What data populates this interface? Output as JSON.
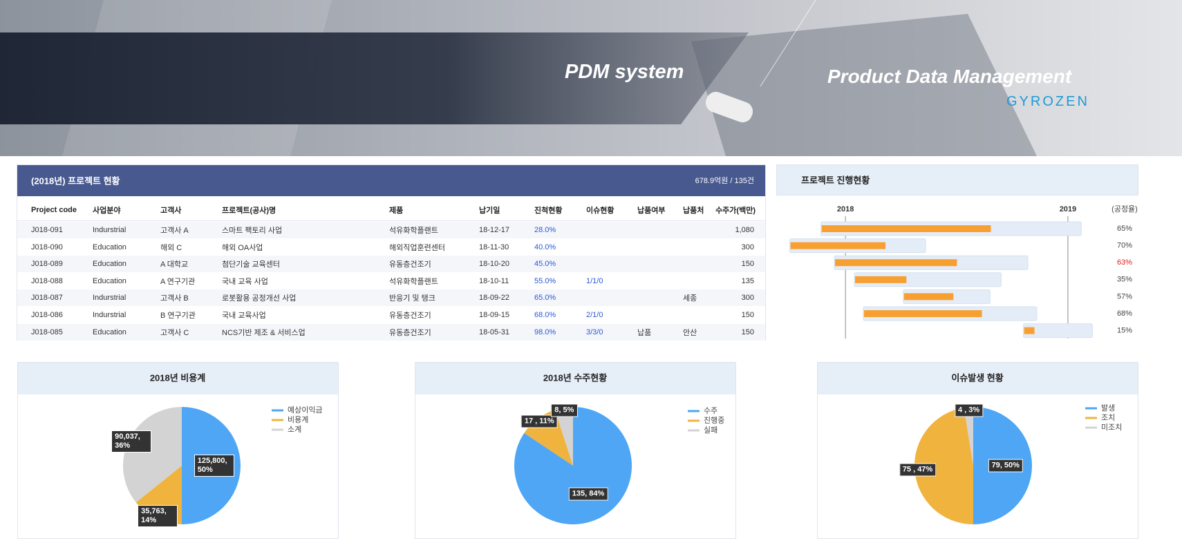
{
  "header": {
    "title": "PDM system",
    "subtitle": "Product Data Management",
    "brand": "GYROZEN"
  },
  "table": {
    "title": "(2018년) 프로젝트 현황",
    "summary": "678.9억원 / 135건",
    "columns": [
      "Project code",
      "사업분야",
      "고객사",
      "프로젝트(공사)명",
      "제품",
      "납기일",
      "진척현황",
      "이슈현황",
      "납품여부",
      "납품처",
      "수주가(백만)"
    ],
    "rows": [
      [
        "J018-091",
        "Indurstrial",
        "고객사 A",
        "스마트 팩토리 사업",
        "석유화학플랜트",
        "18-12-17",
        "28.0%",
        null,
        null,
        null,
        "1,080"
      ],
      [
        "J018-090",
        "Education",
        "해외 C",
        "해외 OA사업",
        "해외직업훈련센터",
        "18-11-30",
        "40.0%",
        null,
        null,
        null,
        "300"
      ],
      [
        "J018-089",
        "Education",
        "A 대학교",
        "첨단기술 교육센터",
        "유동층건조기",
        "18-10-20",
        "45.0%",
        null,
        null,
        null,
        "150"
      ],
      [
        "J018-088",
        "Education",
        "A 연구기관",
        "국내 교육 사업",
        "석유화학플랜트",
        "18-10-11",
        "55.0%",
        "1/1/0",
        null,
        null,
        "135"
      ],
      [
        "J018-087",
        "Indurstrial",
        "고객사 B",
        "로봇활용 공정개선 사업",
        "반응기 및 탱크",
        "18-09-22",
        "65.0%",
        null,
        null,
        "세종",
        "300"
      ],
      [
        "J018-086",
        "Indurstrial",
        "B 연구기관",
        "국내 교육사업",
        "유동층건조기",
        "18-09-15",
        "68.0%",
        "2/1/0",
        null,
        null,
        "150"
      ],
      [
        "J018-085",
        "Education",
        "고객사 C",
        "NCS기반 제조 & 서비스업",
        "유동층건조기",
        "18-05-31",
        "98.0%",
        "3/3/0",
        "납품",
        "안산",
        "150"
      ]
    ]
  },
  "chart_data": [
    {
      "type": "gantt",
      "title": "프로젝트 진행현황",
      "value_axis_label": "(공정율)",
      "xlim": [
        2017.72,
        2019.14
      ],
      "xticks": [
        2018,
        2019
      ],
      "grid": true,
      "start": [
        2017.89,
        2017.75,
        2017.95,
        2018.04,
        2018.26,
        2018.08,
        2018.8
      ],
      "end": [
        2019.06,
        2018.36,
        2018.82,
        2018.7,
        2018.65,
        2018.86,
        2019.11
      ],
      "values": [
        65,
        70,
        63,
        35,
        57,
        68,
        15
      ],
      "value_labels": [
        "65%",
        "70%",
        "63%",
        "35%",
        "57%",
        "68%",
        "15%"
      ],
      "value_label_colors": [
        "#444444",
        "#444444",
        "#e02020",
        "#444444",
        "#444444",
        "#444444",
        "#444444"
      ],
      "color": "#f7a031",
      "track_color": "#e4edf7"
    },
    {
      "type": "pie",
      "title": "2018년 비용계",
      "categories": [
        "예상이익금",
        "비용계",
        "소계"
      ],
      "values": [
        125800,
        35763,
        90037
      ],
      "value_labels": [
        "125,800, 50%",
        "35,763, 14%",
        "90,037, 36%"
      ],
      "colors": [
        "#4ea6f5",
        "#f0b33d",
        "#d3d3d3"
      ]
    },
    {
      "type": "pie",
      "title": "2018년 수주현황",
      "categories": [
        "수주",
        "진행중",
        "실패"
      ],
      "values": [
        135,
        17,
        8
      ],
      "value_labels": [
        "135, 84%",
        "17 , 11%",
        "8, 5%"
      ],
      "colors": [
        "#4ea6f5",
        "#f0b33d",
        "#d3d3d3"
      ]
    },
    {
      "type": "pie",
      "title": "이슈발생 현황",
      "categories": [
        "발생",
        "조치",
        "미조치"
      ],
      "values": [
        79,
        75,
        4
      ],
      "value_labels": [
        "79, 50%",
        "75 , 47%",
        "4 , 3%"
      ],
      "colors": [
        "#4ea6f5",
        "#f0b33d",
        "#d3d3d3"
      ]
    }
  ]
}
